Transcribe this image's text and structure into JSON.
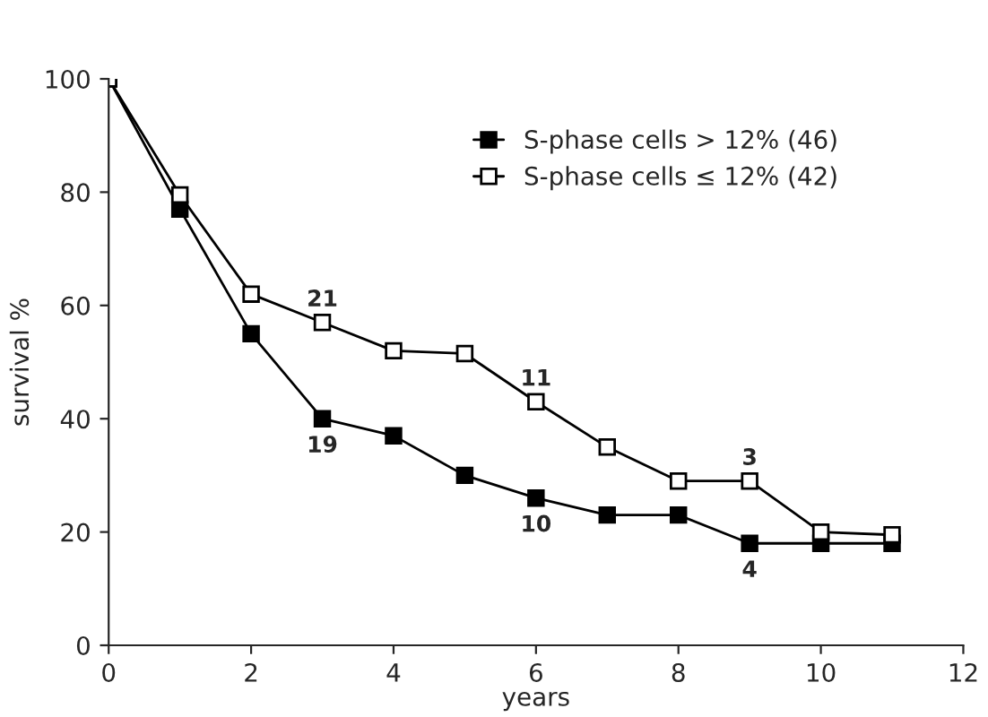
{
  "chart_data": {
    "type": "line",
    "xlabel": "years",
    "ylabel": "survival %",
    "x": [
      0,
      1,
      2,
      3,
      4,
      5,
      6,
      7,
      8,
      9,
      10,
      11
    ],
    "series": [
      {
        "name": "S-phase cells > 12% (46)",
        "color": "#000000",
        "values": [
          100,
          77,
          55,
          40,
          37,
          30,
          26,
          23,
          23,
          18,
          18,
          18
        ]
      },
      {
        "name": "S-phase cells ≤ 12% (42)",
        "color": "#000000",
        "values": [
          100,
          79.5,
          62,
          57,
          52,
          51.5,
          43,
          35,
          29,
          29,
          20,
          19.5
        ]
      }
    ],
    "annotations": [
      {
        "text": "21",
        "x": 3,
        "y": 57
      },
      {
        "text": "19",
        "x": 3,
        "y": 40
      },
      {
        "text": "11",
        "x": 6,
        "y": 43
      },
      {
        "text": "10",
        "x": 6,
        "y": 26
      },
      {
        "text": "3",
        "x": 9,
        "y": 29
      },
      {
        "text": "4",
        "x": 9,
        "y": 18
      }
    ],
    "xlim": [
      0,
      12
    ],
    "ylim": [
      0,
      100
    ],
    "xticks": [
      0,
      2,
      4,
      6,
      8,
      10,
      12
    ],
    "yticks": [
      0,
      20,
      40,
      60,
      80,
      100
    ],
    "grid": false,
    "legend": "top right",
    "marker": "square",
    "line_style": "solid"
  }
}
